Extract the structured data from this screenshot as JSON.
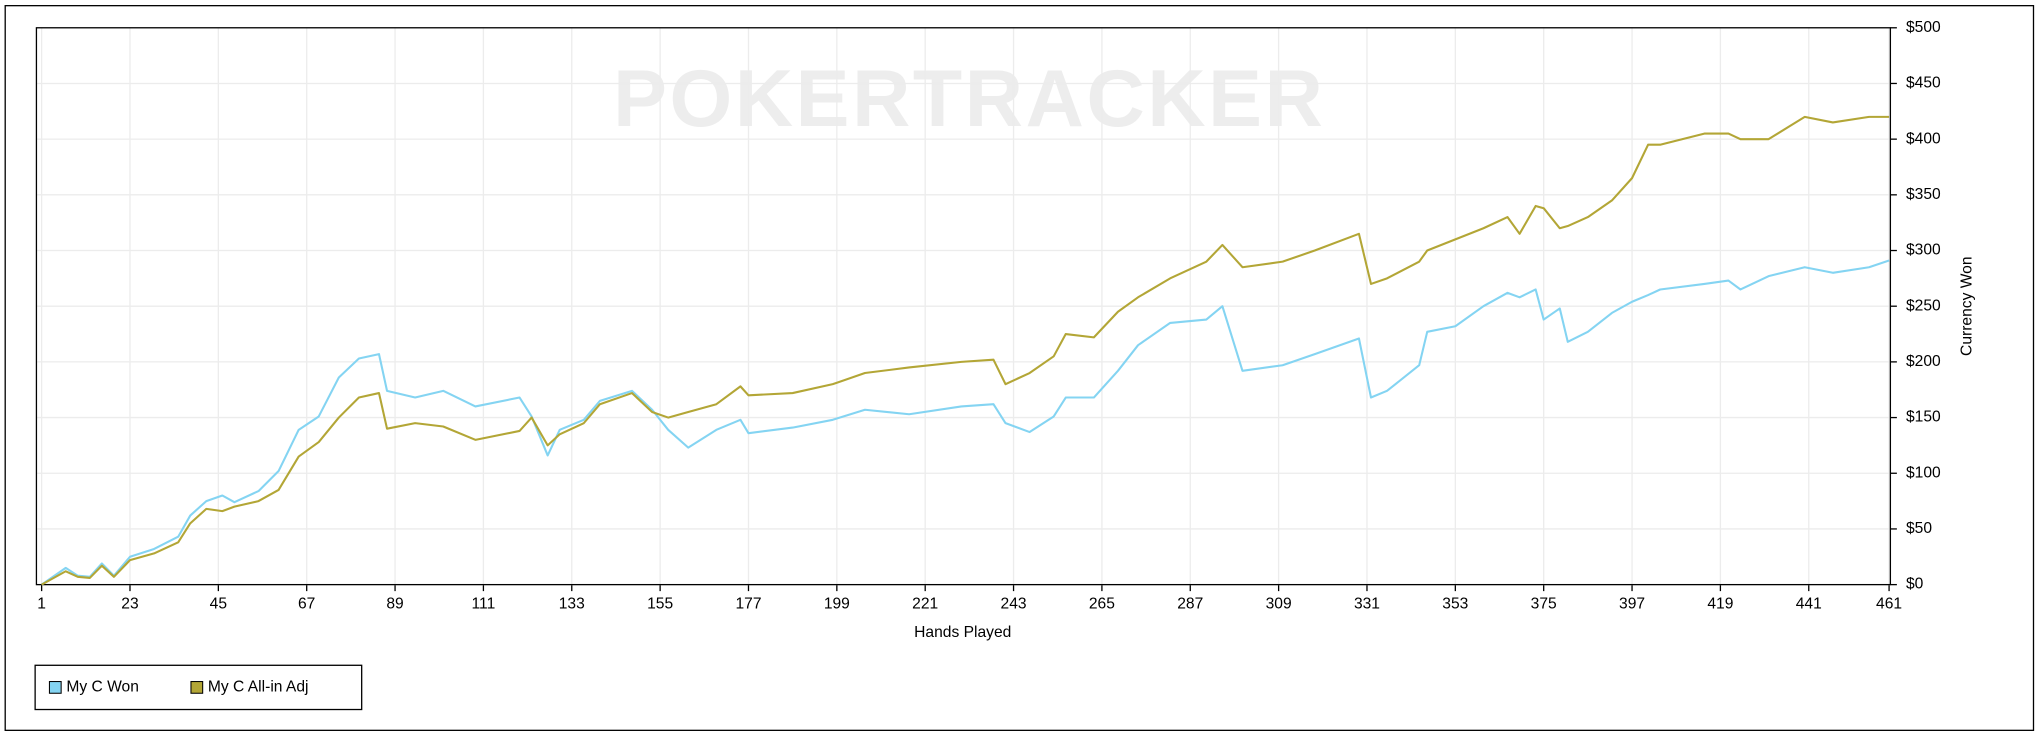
{
  "chart_data": {
    "type": "line",
    "watermark": "POKERTRACKER",
    "x_label": "Hands Played",
    "y_label": "Currency Won",
    "x": [
      1,
      7,
      10,
      13,
      16,
      19,
      23,
      29,
      35,
      38,
      42,
      46,
      49,
      55,
      60,
      65,
      70,
      75,
      80,
      85,
      87,
      94,
      101,
      109,
      120,
      123,
      127,
      130,
      136,
      140,
      148,
      153,
      157,
      162,
      169,
      175,
      177,
      188,
      198,
      206,
      217,
      230,
      238,
      241,
      247,
      253,
      256,
      263,
      269,
      274,
      282,
      291,
      295,
      300,
      310,
      318,
      329,
      332,
      336,
      344,
      346,
      353,
      360,
      366,
      369,
      373,
      375,
      379,
      381,
      386,
      392,
      397,
      401,
      404,
      415,
      421,
      424,
      431,
      440,
      447,
      456,
      461
    ],
    "series": [
      {
        "name": "My C Won",
        "color": "#84d4f2",
        "values": [
          0,
          15,
          8,
          7,
          19,
          8,
          25,
          32,
          43,
          62,
          75,
          80,
          74,
          84,
          102,
          139,
          151,
          186,
          203,
          207,
          174,
          168,
          174,
          160,
          168,
          151,
          116,
          139,
          148,
          165,
          174,
          157,
          139,
          123,
          139,
          148,
          136,
          141,
          148,
          157,
          153,
          160,
          162,
          145,
          137,
          151,
          168,
          168,
          192,
          215,
          235,
          238,
          250,
          192,
          197,
          207,
          221,
          168,
          174,
          197,
          227,
          232,
          250,
          262,
          258,
          265,
          238,
          248,
          218,
          227,
          244,
          254,
          260,
          265,
          270,
          273,
          265,
          277,
          285,
          280,
          285,
          291
        ]
      },
      {
        "name": "My C All-in Adj",
        "color": "#b3a636",
        "values": [
          0,
          12,
          7,
          6,
          17,
          7,
          22,
          28,
          38,
          55,
          68,
          66,
          70,
          75,
          85,
          115,
          128,
          150,
          168,
          172,
          140,
          145,
          142,
          130,
          138,
          150,
          125,
          135,
          145,
          162,
          172,
          155,
          150,
          155,
          162,
          178,
          170,
          172,
          180,
          190,
          195,
          200,
          202,
          180,
          190,
          205,
          225,
          222,
          245,
          258,
          275,
          290,
          305,
          285,
          290,
          300,
          315,
          270,
          275,
          290,
          300,
          310,
          320,
          330,
          315,
          340,
          338,
          320,
          322,
          330,
          345,
          365,
          395,
          395,
          405,
          405,
          400,
          400,
          420,
          415,
          420,
          420
        ]
      }
    ],
    "xlim": [
      1,
      461
    ],
    "xticks": [
      1,
      23,
      45,
      67,
      89,
      111,
      133,
      155,
      177,
      199,
      221,
      243,
      265,
      287,
      309,
      331,
      353,
      375,
      397,
      419,
      441,
      461
    ],
    "ylim": [
      0,
      500
    ],
    "yticks": [
      {
        "value": 0,
        "label": "$0"
      },
      {
        "value": 50,
        "label": "$50"
      },
      {
        "value": 100,
        "label": "$100"
      },
      {
        "value": 150,
        "label": "$150"
      },
      {
        "value": 200,
        "label": "$200"
      },
      {
        "value": 250,
        "label": "$250"
      },
      {
        "value": 300,
        "label": "$300"
      },
      {
        "value": 350,
        "label": "$350"
      },
      {
        "value": 400,
        "label": "$400"
      },
      {
        "value": 450,
        "label": "$450"
      },
      {
        "value": 500,
        "label": "$500"
      }
    ],
    "grid": true,
    "legend": "bottom-left"
  }
}
